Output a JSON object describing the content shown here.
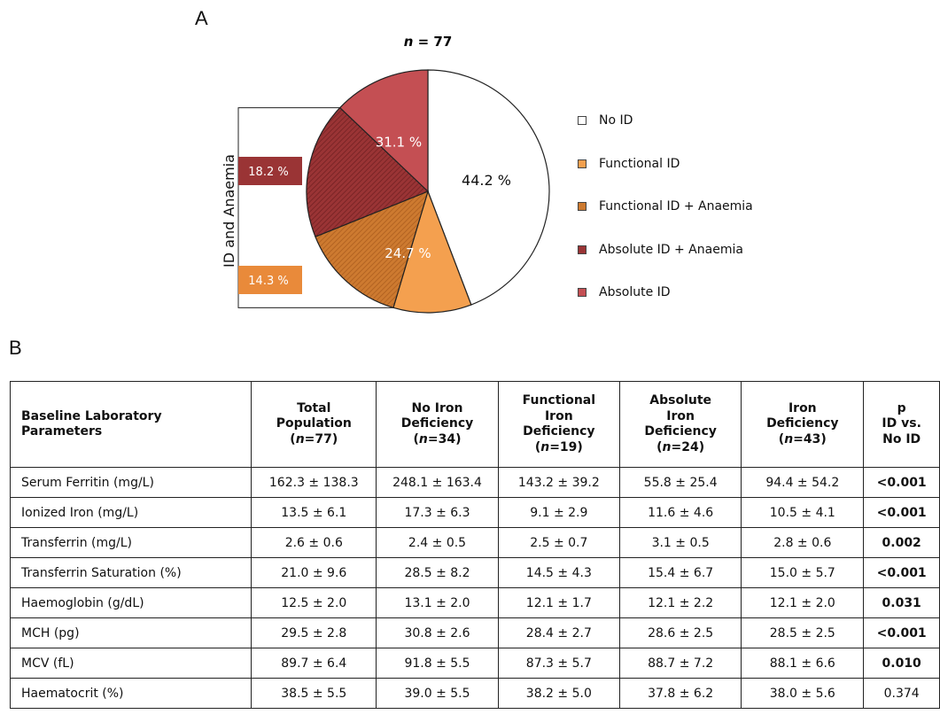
{
  "panel_a_label": "A",
  "panel_b_label": "B",
  "chart_data": {
    "type": "pie",
    "title": "n = 77",
    "title_n": "n",
    "title_rest": " = 77",
    "slices": [
      {
        "name": "No ID",
        "value": 44.2,
        "label": "44.2 %",
        "color": "#ffffff"
      },
      {
        "name": "Functional ID",
        "value": 10.4,
        "label": "",
        "color": "#f4a04f"
      },
      {
        "name": "Functional ID + Anaemia",
        "value": 14.3,
        "label": "",
        "color": "#cd7a30",
        "hatched": true
      },
      {
        "name": "Absolute ID + Anaemia",
        "value": 18.2,
        "label": "",
        "color": "#9a3435",
        "hatched": true
      },
      {
        "name": "Absolute ID",
        "value": 12.9,
        "label": "",
        "color": "#c44f53"
      }
    ],
    "group_labels": [
      {
        "text": "31.1 %",
        "color": "#ffffff"
      },
      {
        "text": "24.7 %",
        "color": "#ffffff"
      }
    ],
    "callouts": [
      {
        "text": "18.2 %",
        "color": "#9a3435"
      },
      {
        "text": "14.3 %",
        "color": "#e98a3a"
      }
    ],
    "bracket_label": "ID and Anaemia",
    "legend": [
      {
        "label": "No ID",
        "color": "#ffffff"
      },
      {
        "label": "Functional ID",
        "color": "#f4a04f"
      },
      {
        "label": "Functional ID + Anaemia",
        "color": "#cd7a30"
      },
      {
        "label": "Absolute ID + Anaemia",
        "color": "#9a3435"
      },
      {
        "label": "Absolute ID",
        "color": "#c44f53"
      }
    ]
  },
  "table": {
    "headers": [
      [
        "Baseline Laboratory Parameters"
      ],
      [
        "Total",
        "Population",
        "(n=77)"
      ],
      [
        "No Iron",
        "Deficiency",
        "(n=34)"
      ],
      [
        "Functional",
        "Iron",
        "Deficiency",
        "(n=19)"
      ],
      [
        "Absolute",
        "Iron",
        "Deficiency",
        "(n=24)"
      ],
      [
        "Iron",
        "Deficiency",
        "(n=43)"
      ],
      [
        "p",
        "ID vs.",
        "No ID"
      ]
    ],
    "rows": [
      {
        "param": "Serum Ferritin (mg/L)",
        "total": "162.3 ± 138.3",
        "no_id": "248.1 ± 163.4",
        "functional": "143.2 ± 39.2",
        "absolute": "55.8 ± 25.4",
        "id": "94.4 ± 54.2",
        "p": "<0.001",
        "p_bold": true
      },
      {
        "param": "Ionized Iron (mg/L)",
        "total": "13.5 ± 6.1",
        "no_id": "17.3 ± 6.3",
        "functional": "9.1 ± 2.9",
        "absolute": "11.6 ± 4.6",
        "id": "10.5 ± 4.1",
        "p": "<0.001",
        "p_bold": true
      },
      {
        "param": "Transferrin (mg/L)",
        "total": "2.6 ± 0.6",
        "no_id": "2.4 ± 0.5",
        "functional": "2.5 ± 0.7",
        "absolute": "3.1 ± 0.5",
        "id": "2.8 ± 0.6",
        "p": "0.002",
        "p_bold": true
      },
      {
        "param": "Transferrin Saturation (%)",
        "total": "21.0 ± 9.6",
        "no_id": "28.5 ± 8.2",
        "functional": "14.5 ± 4.3",
        "absolute": "15.4 ± 6.7",
        "id": "15.0 ± 5.7",
        "p": "<0.001",
        "p_bold": true
      },
      {
        "param": "Haemoglobin (g/dL)",
        "total": "12.5 ± 2.0",
        "no_id": "13.1 ± 2.0",
        "functional": "12.1 ± 1.7",
        "absolute": "12.1 ± 2.2",
        "id": "12.1 ± 2.0",
        "p": "0.031",
        "p_bold": true
      },
      {
        "param": "MCH (pg)",
        "total": "29.5 ± 2.8",
        "no_id": "30.8 ± 2.6",
        "functional": "28.4 ± 2.7",
        "absolute": "28.6 ± 2.5",
        "id": "28.5 ± 2.5",
        "p": "<0.001",
        "p_bold": true
      },
      {
        "param": "MCV (fL)",
        "total": "89.7 ± 6.4",
        "no_id": "91.8 ± 5.5",
        "functional": "87.3 ± 5.7",
        "absolute": "88.7 ± 7.2",
        "id": "88.1 ± 6.6",
        "p": "0.010",
        "p_bold": true
      },
      {
        "param": "Haematocrit (%)",
        "total": "38.5 ± 5.5",
        "no_id": "39.0 ± 5.5",
        "functional": "38.2 ± 5.0",
        "absolute": "37.8 ± 6.2",
        "id": "38.0 ± 5.6",
        "p": "0.374",
        "p_bold": false
      }
    ]
  }
}
